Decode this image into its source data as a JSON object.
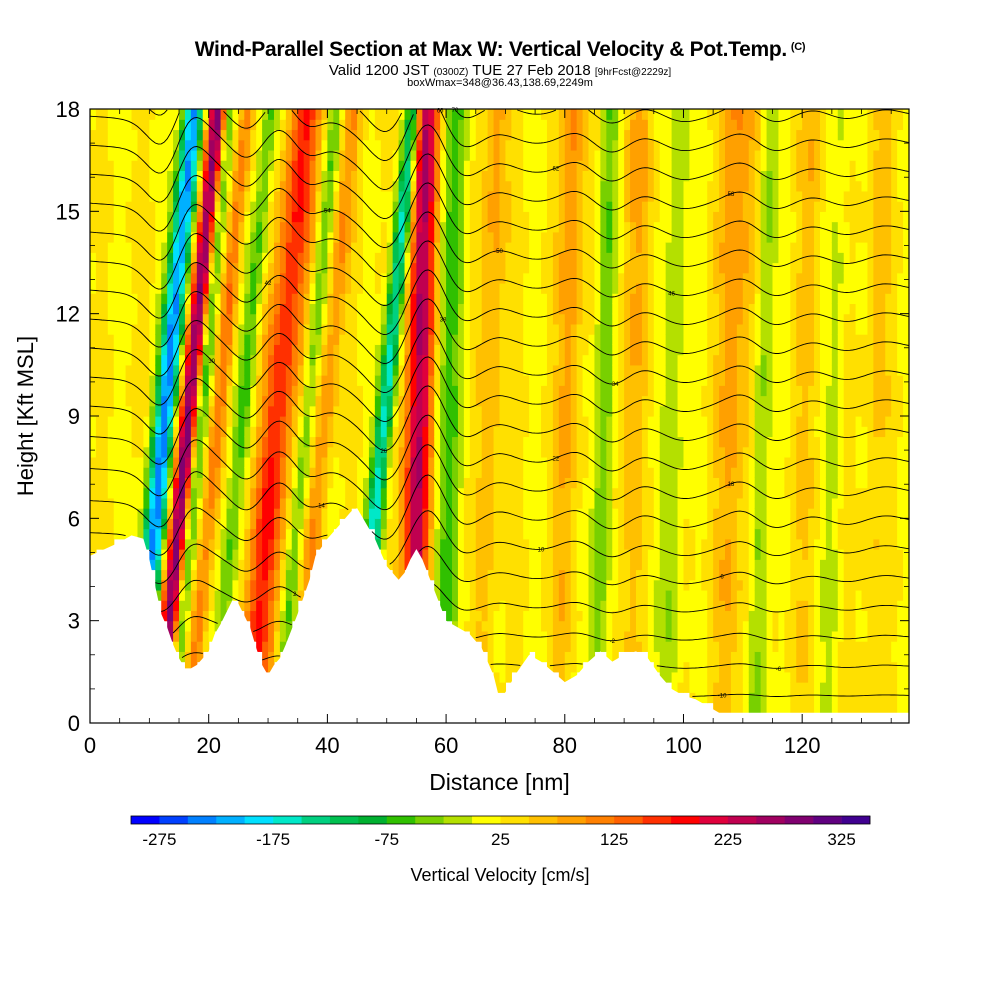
{
  "header": {
    "title": "Wind-Parallel Section at Max W: Vertical Velocity & Pot.Temp.",
    "copyright": "(C)",
    "valid_prefix": "Valid 1200 JST",
    "valid_utc": "(0300Z)",
    "valid_date": "TUE 27 Feb 2018",
    "forecast_info": "[9hrFcst@2229z]",
    "box_info": "boxWmax=348@36.43,138.69,2249m"
  },
  "chart_data": {
    "type": "heatmap",
    "xlabel": "Distance [nm]",
    "ylabel": "Height [Kft MSL]",
    "xlim": [
      0,
      138
    ],
    "ylim": [
      0,
      18
    ],
    "x_ticks": [
      0,
      20,
      40,
      60,
      80,
      100,
      120
    ],
    "y_ticks": [
      0,
      3,
      6,
      9,
      12,
      15,
      18
    ],
    "colorbar": {
      "label": "Vertical Velocity [cm/s]",
      "tick_labels": [
        "-275",
        "-175",
        "-75",
        "25",
        "125",
        "225",
        "325"
      ],
      "min": -300,
      "max": 350,
      "step": 25,
      "colors": [
        "#0000ff",
        "#0040ff",
        "#0080ff",
        "#00b0ff",
        "#00e0ff",
        "#00e8c8",
        "#00d080",
        "#00c050",
        "#00b030",
        "#30c000",
        "#78d000",
        "#b4e000",
        "#ffff00",
        "#ffe000",
        "#ffc000",
        "#ffa000",
        "#ff8000",
        "#ff6000",
        "#ff3000",
        "#ff0000",
        "#e0003c",
        "#c00050",
        "#a00060",
        "#800070",
        "#600080",
        "#400090"
      ]
    },
    "updraft_bands": [
      {
        "x": 15,
        "peak": 260,
        "width": 1.6
      },
      {
        "x": 20,
        "peak": 90,
        "width": 1.3
      },
      {
        "x": 30,
        "peak": 150,
        "width": 2.8
      },
      {
        "x": 38,
        "peak": 70,
        "width": 1.6
      },
      {
        "x": 55,
        "peak": 230,
        "width": 2.2
      },
      {
        "x": 67,
        "peak": 50,
        "width": 2.0
      },
      {
        "x": 80,
        "peak": 60,
        "width": 2.0
      },
      {
        "x": 91,
        "peak": 40,
        "width": 2.5
      },
      {
        "x": 108,
        "peak": 60,
        "width": 3.0
      },
      {
        "x": 120,
        "peak": 30,
        "width": 2.0
      },
      {
        "x": 132,
        "peak": 30,
        "width": 2.0
      }
    ],
    "downdraft_bands": [
      {
        "x": 11,
        "peak": -260,
        "width": 1.8
      },
      {
        "x": 17,
        "peak": -110,
        "width": 1.1
      },
      {
        "x": 24,
        "peak": -80,
        "width": 1.4
      },
      {
        "x": 35,
        "peak": -70,
        "width": 1.2
      },
      {
        "x": 48,
        "peak": -190,
        "width": 1.4
      },
      {
        "x": 60,
        "peak": -80,
        "width": 2.2
      },
      {
        "x": 86,
        "peak": -75,
        "width": 1.6
      },
      {
        "x": 98,
        "peak": -45,
        "width": 2.0
      },
      {
        "x": 113,
        "peak": -60,
        "width": 1.6
      },
      {
        "x": 125,
        "peak": -30,
        "width": 1.5
      }
    ],
    "terrain": {
      "distance_nm": [
        0,
        5,
        7,
        9,
        10,
        11,
        12,
        13,
        14,
        15,
        16,
        17,
        18,
        19,
        20,
        21,
        22,
        24,
        25,
        27,
        28,
        29,
        30,
        31,
        32,
        33,
        35,
        37,
        38,
        40,
        42,
        44,
        45,
        46,
        48,
        50,
        52,
        53,
        54,
        55,
        56,
        58,
        60,
        62,
        64,
        66,
        68,
        69,
        70,
        72,
        74,
        76,
        78,
        80,
        82,
        84,
        86,
        88,
        90,
        92,
        94,
        96,
        98,
        100,
        102,
        104,
        106,
        110,
        115,
        120,
        125,
        130,
        138
      ],
      "height_kft": [
        4.9,
        5.3,
        5.5,
        5.4,
        4.8,
        4.0,
        3.2,
        2.8,
        2.3,
        1.9,
        1.6,
        1.6,
        1.7,
        1.9,
        2.1,
        2.6,
        2.9,
        3.6,
        3.5,
        2.8,
        2.2,
        1.7,
        1.4,
        1.7,
        1.9,
        2.3,
        3.2,
        4.2,
        4.9,
        5.4,
        5.8,
        6.2,
        6.3,
        6.0,
        5.4,
        4.6,
        4.2,
        4.4,
        4.8,
        5.1,
        4.8,
        3.9,
        3.0,
        2.8,
        2.6,
        2.2,
        1.4,
        0.7,
        0.9,
        1.5,
        2.0,
        1.8,
        1.5,
        1.2,
        1.4,
        1.8,
        2.1,
        1.8,
        2.0,
        2.1,
        1.9,
        1.4,
        1.0,
        0.8,
        0.7,
        0.5,
        0.3,
        0.3,
        0.3,
        0.3,
        0.3,
        0.3,
        0.3
      ]
    },
    "theta_contours": {
      "count": 22,
      "lowest_level_kft": 0.8,
      "spacing_kft": 0.85,
      "labels": [
        "-10",
        "-6",
        "-2",
        "2",
        "6",
        "10",
        "14",
        "18",
        "22",
        "26",
        "30",
        "34",
        "38",
        "42",
        "46",
        "50",
        "54",
        "58",
        "62",
        "66",
        "70",
        "74"
      ]
    }
  }
}
